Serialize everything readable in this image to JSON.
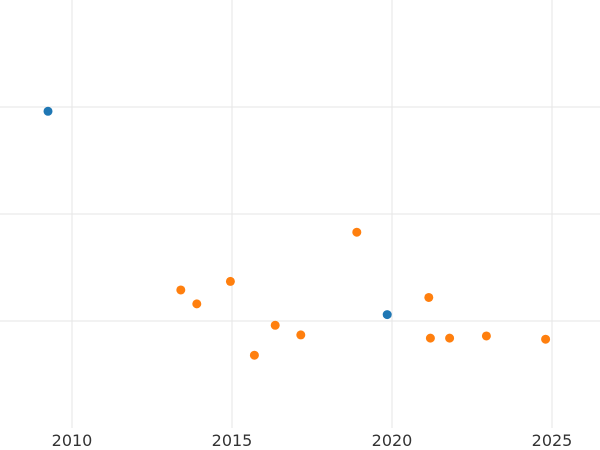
{
  "chart_data": {
    "type": "scatter",
    "title": "",
    "xlabel": "",
    "ylabel": "",
    "xlim": [
      2007.75,
      2026.5
    ],
    "ylim": [
      0,
      4
    ],
    "x_ticks": [
      2010,
      2015,
      2020,
      2025
    ],
    "x_tick_labels": [
      "2010",
      "2015",
      "2020",
      "2025"
    ],
    "y_gridlines": [
      1,
      2,
      3
    ],
    "grid": true,
    "legend": "none",
    "series": [
      {
        "color": "#1f77b4",
        "points": [
          {
            "x": 2009.25,
            "y": 2.96
          },
          {
            "x": 2019.85,
            "y": 1.06
          }
        ]
      },
      {
        "color": "#ff7f0e",
        "points": [
          {
            "x": 2013.4,
            "y": 1.29
          },
          {
            "x": 2013.9,
            "y": 1.16
          },
          {
            "x": 2014.95,
            "y": 1.37
          },
          {
            "x": 2015.7,
            "y": 0.68
          },
          {
            "x": 2016.35,
            "y": 0.96
          },
          {
            "x": 2017.15,
            "y": 0.87
          },
          {
            "x": 2018.9,
            "y": 1.83
          },
          {
            "x": 2021.15,
            "y": 1.22
          },
          {
            "x": 2021.2,
            "y": 0.84
          },
          {
            "x": 2021.8,
            "y": 0.84
          },
          {
            "x": 2022.95,
            "y": 0.86
          },
          {
            "x": 2024.8,
            "y": 0.83
          }
        ]
      }
    ]
  }
}
